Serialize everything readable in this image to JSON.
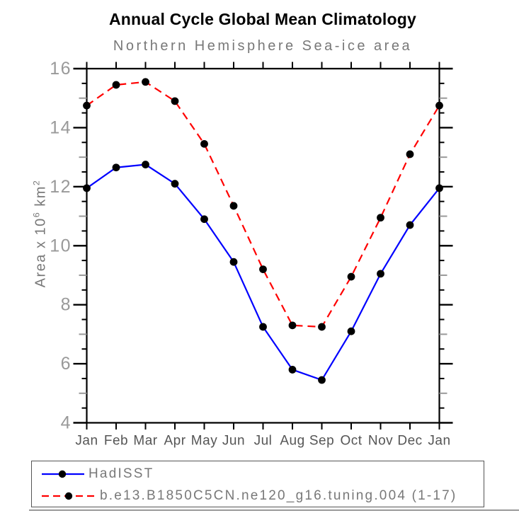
{
  "colors": {
    "hadisst-line": "#0000ff",
    "model-line": "#ff0000",
    "marker": "#000000",
    "axis-frame": "#000000",
    "y-tick-label": "#999999",
    "x-tick-label": "#555555",
    "minor-tick-odd": "#999999",
    "title-text": "#000000",
    "subtitle-text": "#787878",
    "legend-text": "#787878"
  },
  "chart_data": {
    "type": "line",
    "title": "Annual Cycle Global Mean Climatology",
    "subtitle": "Northern Hemisphere Sea-ice area",
    "categories": [
      "Jan",
      "Feb",
      "Mar",
      "Apr",
      "May",
      "Jun",
      "Jul",
      "Aug",
      "Sep",
      "Oct",
      "Nov",
      "Dec",
      "Jan"
    ],
    "ylabel": "Area x 10^6 km^2",
    "ylabel_parts": {
      "prefix": "Area x 10",
      "sup1": "6",
      "mid": " km",
      "sup2": "2"
    },
    "ylim": [
      4,
      16
    ],
    "ytick_major": [
      4,
      6,
      8,
      10,
      12,
      14,
      16
    ],
    "ytick_minor_step": 0.5,
    "grid": false,
    "legend_position": "bottom-left",
    "series": [
      {
        "id": "hadisst",
        "name": "HadISST",
        "color": "#0000ff",
        "line_style": "solid",
        "marker": "circle",
        "marker_color": "#000000",
        "values": [
          11.95,
          12.65,
          12.75,
          12.1,
          10.9,
          9.45,
          7.25,
          5.8,
          5.45,
          7.1,
          9.05,
          10.7,
          11.95
        ]
      },
      {
        "id": "model",
        "name": "b.e13.B1850C5CN.ne120_g16.tuning.004 (1-17)",
        "color": "#ff0000",
        "line_style": "dashed",
        "marker": "circle",
        "marker_color": "#000000",
        "values": [
          14.75,
          15.45,
          15.55,
          14.9,
          13.45,
          11.35,
          9.2,
          7.3,
          7.25,
          8.95,
          10.95,
          13.1,
          14.75
        ]
      }
    ]
  }
}
